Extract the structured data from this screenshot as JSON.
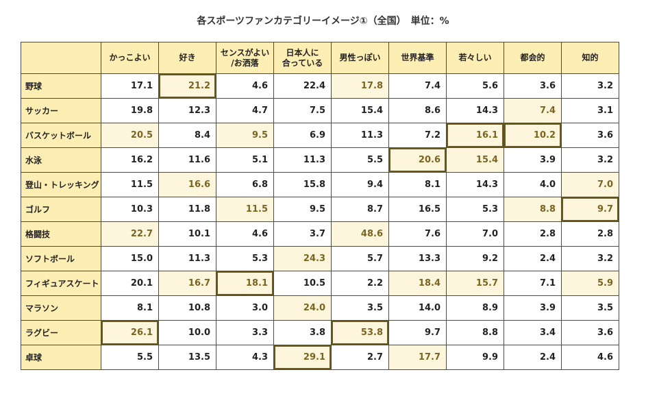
{
  "chart_data": {
    "type": "table",
    "title": "各スポーツファンカテゴリーイメージ①（全国）　単位：%",
    "columns": [
      "かっこよい",
      "好き",
      "センスがよい\n/お洒落",
      "日本人に\n合っている",
      "男性っぽい",
      "世界基準",
      "若々しい",
      "都会的",
      "知的"
    ],
    "rows": [
      {
        "sport": "野球",
        "values": [
          "17.1",
          "21.2",
          "4.6",
          "22.4",
          "17.8",
          "7.4",
          "5.6",
          "3.6",
          "3.2"
        ],
        "hl": [
          1,
          4
        ],
        "box": [
          1
        ]
      },
      {
        "sport": "サッカー",
        "values": [
          "19.8",
          "12.3",
          "4.7",
          "7.5",
          "15.4",
          "8.6",
          "14.3",
          "7.4",
          "3.1"
        ],
        "hl": [
          7
        ],
        "box": []
      },
      {
        "sport": "バスケットボール",
        "values": [
          "20.5",
          "8.4",
          "9.5",
          "6.9",
          "11.3",
          "7.2",
          "16.1",
          "10.2",
          "3.6"
        ],
        "hl": [
          0,
          2,
          6,
          7
        ],
        "box": [
          6,
          7
        ]
      },
      {
        "sport": "水泳",
        "values": [
          "16.2",
          "11.6",
          "5.1",
          "11.3",
          "5.5",
          "20.6",
          "15.4",
          "3.9",
          "3.2"
        ],
        "hl": [
          5,
          6
        ],
        "box": [
          5
        ]
      },
      {
        "sport": "登山・トレッキング",
        "values": [
          "11.5",
          "16.6",
          "6.8",
          "15.8",
          "9.4",
          "8.1",
          "14.3",
          "4.0",
          "7.0"
        ],
        "hl": [
          1,
          8
        ],
        "box": []
      },
      {
        "sport": "ゴルフ",
        "values": [
          "10.3",
          "11.8",
          "11.5",
          "9.5",
          "8.7",
          "16.5",
          "5.3",
          "8.8",
          "9.7"
        ],
        "hl": [
          2,
          7,
          8
        ],
        "box": [
          8
        ]
      },
      {
        "sport": "格闘技",
        "values": [
          "22.7",
          "10.1",
          "4.6",
          "3.7",
          "48.6",
          "7.6",
          "7.0",
          "2.8",
          "2.8"
        ],
        "hl": [
          0,
          4
        ],
        "box": []
      },
      {
        "sport": "ソフトボール",
        "values": [
          "15.0",
          "11.3",
          "5.3",
          "24.3",
          "5.7",
          "13.3",
          "9.2",
          "2.4",
          "3.2"
        ],
        "hl": [
          3
        ],
        "box": []
      },
      {
        "sport": "フィギュアスケート",
        "values": [
          "20.1",
          "16.7",
          "18.1",
          "10.5",
          "2.2",
          "18.4",
          "15.7",
          "7.1",
          "5.9"
        ],
        "hl": [
          1,
          2,
          5,
          6,
          8
        ],
        "box": [
          2
        ]
      },
      {
        "sport": "マラソン",
        "values": [
          "8.1",
          "10.8",
          "3.0",
          "24.0",
          "3.5",
          "14.0",
          "8.9",
          "3.9",
          "3.5"
        ],
        "hl": [
          3
        ],
        "box": []
      },
      {
        "sport": "ラグビー",
        "values": [
          "26.1",
          "10.0",
          "3.3",
          "3.8",
          "53.8",
          "9.7",
          "8.8",
          "3.4",
          "3.6"
        ],
        "hl": [
          0,
          4
        ],
        "box": [
          0,
          4
        ]
      },
      {
        "sport": "卓球",
        "values": [
          "5.5",
          "13.5",
          "4.3",
          "29.1",
          "2.7",
          "17.7",
          "9.9",
          "2.4",
          "4.6"
        ],
        "hl": [
          3,
          5
        ],
        "box": [
          3
        ]
      }
    ],
    "colors": {
      "header_bg": "#fdeeb3",
      "highlight_bg": "#fdf5dc",
      "highlight_text": "#7a6520",
      "box_border": "#6b5a1f"
    }
  }
}
